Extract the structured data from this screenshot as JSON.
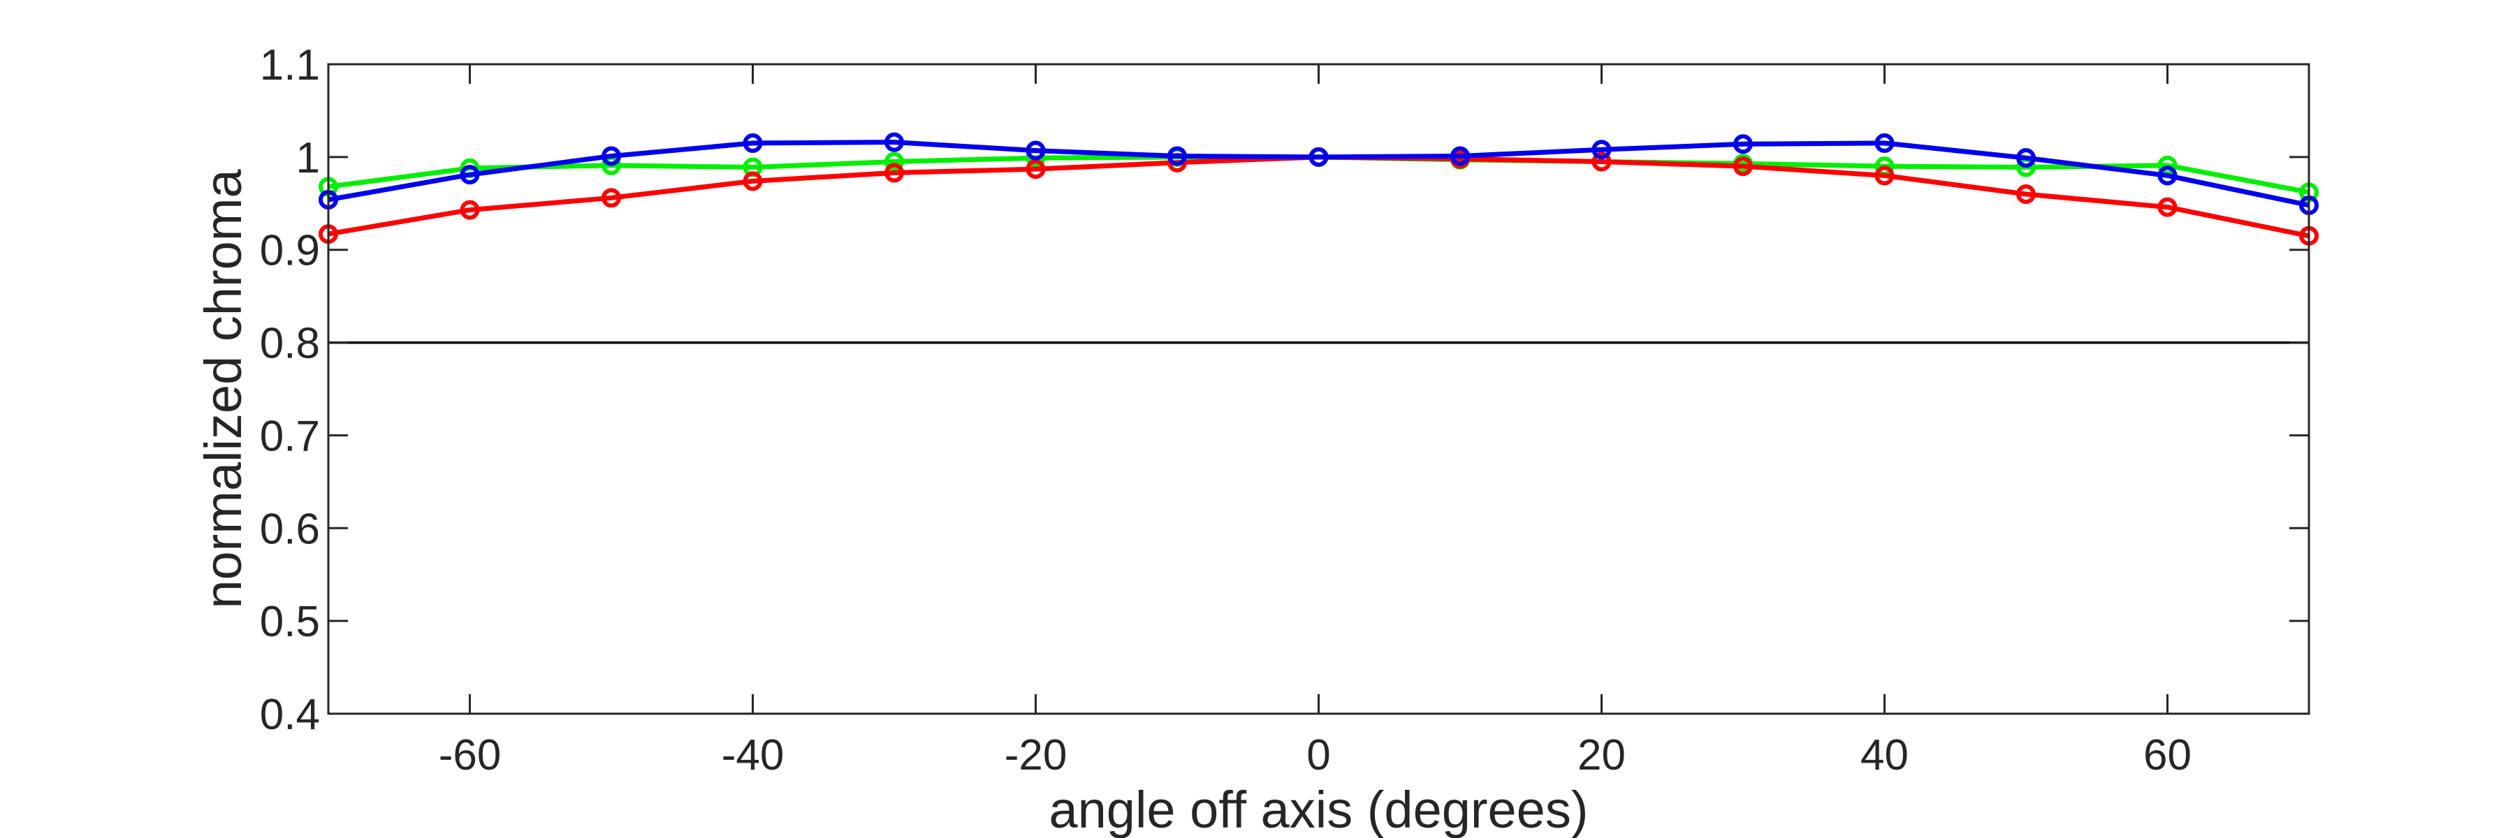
{
  "chart_data": {
    "type": "line",
    "xlabel": "angle off axis (degrees)",
    "ylabel": "normalized chroma",
    "xlim": [
      -70,
      70
    ],
    "ylim": [
      0.4,
      1.1
    ],
    "xticks": [
      -60,
      -40,
      -20,
      0,
      20,
      40,
      60
    ],
    "xtick_labels": [
      "-60",
      "-40",
      "-20",
      "0",
      "20",
      "40",
      "60"
    ],
    "yticks": [
      0.4,
      0.5,
      0.6,
      0.7,
      0.8,
      0.9,
      1.0,
      1.1
    ],
    "ytick_labels": [
      "0.4",
      "0.5",
      "0.6",
      "0.7",
      "0.8",
      "0.9",
      "1",
      "1.1"
    ],
    "reference_line": 0.8,
    "grid": false,
    "x": [
      -70,
      -60,
      -50,
      -40,
      -30,
      -20,
      -10,
      0,
      10,
      20,
      30,
      40,
      50,
      60,
      70
    ],
    "series": [
      {
        "color": "#00ee00",
        "values": [
          0.968,
          0.988,
          0.991,
          0.989,
          0.995,
          0.999,
          1.0,
          1.0,
          0.997,
          0.995,
          0.993,
          0.99,
          0.989,
          0.991,
          0.962
        ]
      },
      {
        "color": "#ff0000",
        "values": [
          0.917,
          0.943,
          0.956,
          0.974,
          0.983,
          0.987,
          0.994,
          1.0,
          0.998,
          0.995,
          0.99,
          0.98,
          0.96,
          0.946,
          0.915
        ]
      },
      {
        "color": "#0000ee",
        "values": [
          0.954,
          0.981,
          1.001,
          1.015,
          1.016,
          1.007,
          1.001,
          1.0,
          1.001,
          1.008,
          1.014,
          1.015,
          0.999,
          0.98,
          0.948
        ]
      }
    ]
  }
}
